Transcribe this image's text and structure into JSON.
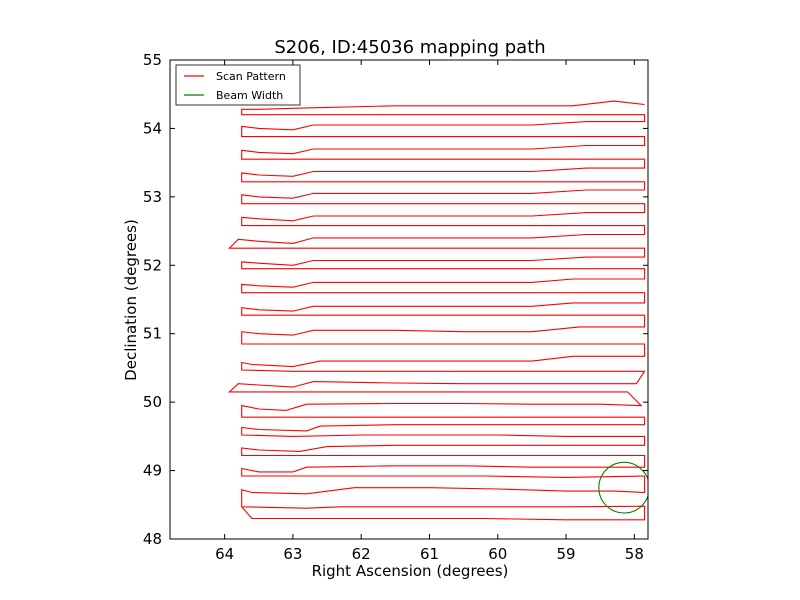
{
  "chart_data": {
    "type": "line",
    "title": "S206, ID:45036 mapping path",
    "xlabel": "Right Ascension (degrees)",
    "ylabel": "Declination (degrees)",
    "xlim": [
      64.8,
      57.8
    ],
    "ylim": [
      48,
      55
    ],
    "x_ticks": [
      "64",
      "63",
      "62",
      "61",
      "60",
      "59",
      "58"
    ],
    "x_tick_values": [
      64,
      63,
      62,
      61,
      60,
      59,
      58
    ],
    "y_ticks": [
      "48",
      "49",
      "50",
      "51",
      "52",
      "53",
      "54",
      "55"
    ],
    "y_tick_values": [
      48,
      49,
      50,
      51,
      52,
      53,
      54,
      55
    ],
    "grid": false,
    "legend_position": "top-left",
    "legend": [
      {
        "label": "Scan Pattern",
        "color": "#ff0000"
      },
      {
        "label": "Beam Width",
        "color": "#008000"
      }
    ],
    "series": [
      {
        "name": "Scan Pattern",
        "color": "#ff0000",
        "path": [
          [
            63.75,
            48.47
          ],
          [
            63.6,
            48.3
          ],
          [
            62.8,
            48.3
          ],
          [
            62.1,
            48.3
          ],
          [
            61.3,
            48.3
          ],
          [
            60.2,
            48.3
          ],
          [
            59.0,
            48.28
          ],
          [
            58.3,
            48.28
          ],
          [
            57.85,
            48.28
          ],
          [
            57.85,
            48.48
          ],
          [
            59.0,
            48.47
          ],
          [
            60.2,
            48.47
          ],
          [
            61.5,
            48.47
          ],
          [
            62.3,
            48.47
          ],
          [
            62.8,
            48.45
          ],
          [
            63.75,
            48.47
          ],
          [
            63.75,
            48.72
          ],
          [
            63.6,
            48.68
          ],
          [
            62.8,
            48.66
          ],
          [
            62.1,
            48.75
          ],
          [
            61.0,
            48.75
          ],
          [
            60.0,
            48.73
          ],
          [
            59.0,
            48.7
          ],
          [
            58.3,
            48.7
          ],
          [
            57.85,
            48.68
          ],
          [
            57.85,
            48.92
          ],
          [
            59.0,
            48.9
          ],
          [
            60.2,
            48.92
          ],
          [
            61.5,
            48.92
          ],
          [
            62.5,
            48.92
          ],
          [
            63.0,
            48.92
          ],
          [
            63.75,
            48.92
          ],
          [
            63.75,
            49.03
          ],
          [
            63.5,
            48.98
          ],
          [
            63.0,
            48.98
          ],
          [
            62.8,
            49.05
          ],
          [
            61.5,
            49.07
          ],
          [
            60.5,
            49.07
          ],
          [
            59.5,
            49.05
          ],
          [
            58.5,
            49.05
          ],
          [
            57.85,
            49.05
          ],
          [
            57.85,
            49.22
          ],
          [
            59.0,
            49.22
          ],
          [
            60.0,
            49.22
          ],
          [
            61.0,
            49.22
          ],
          [
            62.0,
            49.22
          ],
          [
            63.0,
            49.22
          ],
          [
            63.75,
            49.22
          ],
          [
            63.75,
            49.33
          ],
          [
            63.5,
            49.3
          ],
          [
            62.9,
            49.28
          ],
          [
            62.5,
            49.35
          ],
          [
            61.5,
            49.37
          ],
          [
            60.5,
            49.37
          ],
          [
            59.5,
            49.37
          ],
          [
            58.9,
            49.37
          ],
          [
            57.85,
            49.37
          ],
          [
            57.85,
            49.5
          ],
          [
            59.0,
            49.5
          ],
          [
            60.0,
            49.52
          ],
          [
            61.0,
            49.52
          ],
          [
            62.0,
            49.52
          ],
          [
            63.0,
            49.5
          ],
          [
            63.75,
            49.52
          ],
          [
            63.75,
            49.63
          ],
          [
            63.5,
            49.6
          ],
          [
            62.8,
            49.58
          ],
          [
            62.6,
            49.65
          ],
          [
            61.5,
            49.67
          ],
          [
            60.5,
            49.67
          ],
          [
            59.5,
            49.67
          ],
          [
            58.5,
            49.67
          ],
          [
            57.85,
            49.67
          ],
          [
            57.85,
            49.78
          ],
          [
            59.0,
            49.78
          ],
          [
            60.0,
            49.78
          ],
          [
            61.0,
            49.78
          ],
          [
            62.0,
            49.78
          ],
          [
            63.0,
            49.78
          ],
          [
            63.75,
            49.78
          ],
          [
            63.75,
            49.95
          ],
          [
            63.5,
            49.9
          ],
          [
            63.1,
            49.88
          ],
          [
            62.8,
            49.97
          ],
          [
            61.5,
            49.98
          ],
          [
            60.5,
            49.98
          ],
          [
            59.5,
            49.97
          ],
          [
            58.5,
            49.97
          ],
          [
            57.9,
            49.95
          ],
          [
            58.1,
            50.15
          ],
          [
            59.0,
            50.15
          ],
          [
            60.0,
            50.15
          ],
          [
            61.0,
            50.15
          ],
          [
            62.0,
            50.15
          ],
          [
            63.0,
            50.15
          ],
          [
            63.93,
            50.15
          ],
          [
            63.8,
            50.27
          ],
          [
            63.5,
            50.25
          ],
          [
            63.0,
            50.22
          ],
          [
            62.7,
            50.3
          ],
          [
            61.5,
            50.28
          ],
          [
            60.5,
            50.27
          ],
          [
            59.5,
            50.27
          ],
          [
            58.5,
            50.27
          ],
          [
            57.97,
            50.27
          ],
          [
            57.85,
            50.45
          ],
          [
            59.0,
            50.45
          ],
          [
            60.0,
            50.45
          ],
          [
            61.0,
            50.45
          ],
          [
            62.0,
            50.45
          ],
          [
            63.0,
            50.45
          ],
          [
            63.75,
            50.47
          ],
          [
            63.75,
            50.58
          ],
          [
            63.6,
            50.55
          ],
          [
            63.0,
            50.52
          ],
          [
            62.6,
            50.6
          ],
          [
            61.5,
            50.6
          ],
          [
            60.5,
            50.6
          ],
          [
            59.5,
            50.6
          ],
          [
            58.9,
            50.67
          ],
          [
            57.85,
            50.67
          ],
          [
            57.85,
            50.85
          ],
          [
            59.0,
            50.85
          ],
          [
            60.0,
            50.85
          ],
          [
            61.0,
            50.85
          ],
          [
            62.0,
            50.85
          ],
          [
            63.0,
            50.85
          ],
          [
            63.75,
            50.85
          ],
          [
            63.75,
            51.03
          ],
          [
            63.5,
            51.0
          ],
          [
            63.0,
            50.98
          ],
          [
            62.7,
            51.05
          ],
          [
            61.5,
            51.05
          ],
          [
            60.5,
            51.03
          ],
          [
            59.5,
            51.03
          ],
          [
            58.8,
            51.1
          ],
          [
            57.85,
            51.1
          ],
          [
            57.85,
            51.27
          ],
          [
            59.0,
            51.27
          ],
          [
            60.0,
            51.27
          ],
          [
            61.0,
            51.27
          ],
          [
            62.0,
            51.27
          ],
          [
            63.0,
            51.27
          ],
          [
            63.75,
            51.27
          ],
          [
            63.75,
            51.38
          ],
          [
            63.5,
            51.35
          ],
          [
            63.0,
            51.33
          ],
          [
            62.7,
            51.4
          ],
          [
            61.5,
            51.4
          ],
          [
            60.5,
            51.4
          ],
          [
            59.5,
            51.4
          ],
          [
            58.9,
            51.45
          ],
          [
            57.85,
            51.45
          ],
          [
            57.85,
            51.6
          ],
          [
            59.0,
            51.6
          ],
          [
            60.0,
            51.6
          ],
          [
            61.0,
            51.6
          ],
          [
            62.0,
            51.6
          ],
          [
            63.0,
            51.6
          ],
          [
            63.75,
            51.6
          ],
          [
            63.75,
            51.72
          ],
          [
            63.5,
            51.7
          ],
          [
            63.0,
            51.68
          ],
          [
            62.7,
            51.75
          ],
          [
            61.5,
            51.75
          ],
          [
            60.5,
            51.75
          ],
          [
            59.5,
            51.75
          ],
          [
            58.9,
            51.8
          ],
          [
            57.85,
            51.8
          ],
          [
            57.85,
            51.95
          ],
          [
            59.0,
            51.95
          ],
          [
            60.0,
            51.95
          ],
          [
            61.0,
            51.95
          ],
          [
            62.0,
            51.95
          ],
          [
            63.0,
            51.95
          ],
          [
            63.75,
            51.95
          ],
          [
            63.75,
            52.05
          ],
          [
            63.5,
            52.03
          ],
          [
            63.0,
            52.0
          ],
          [
            62.7,
            52.07
          ],
          [
            61.5,
            52.07
          ],
          [
            60.5,
            52.07
          ],
          [
            59.5,
            52.07
          ],
          [
            58.7,
            52.12
          ],
          [
            57.85,
            52.12
          ],
          [
            57.85,
            52.25
          ],
          [
            59.0,
            52.25
          ],
          [
            60.0,
            52.25
          ],
          [
            61.0,
            52.25
          ],
          [
            62.0,
            52.25
          ],
          [
            63.0,
            52.25
          ],
          [
            63.93,
            52.25
          ],
          [
            63.8,
            52.38
          ],
          [
            63.5,
            52.35
          ],
          [
            63.0,
            52.32
          ],
          [
            62.7,
            52.4
          ],
          [
            61.5,
            52.4
          ],
          [
            60.5,
            52.4
          ],
          [
            59.5,
            52.4
          ],
          [
            58.7,
            52.45
          ],
          [
            57.85,
            52.45
          ],
          [
            57.85,
            52.58
          ],
          [
            59.0,
            52.58
          ],
          [
            60.0,
            52.58
          ],
          [
            61.0,
            52.58
          ],
          [
            62.0,
            52.58
          ],
          [
            63.0,
            52.58
          ],
          [
            63.75,
            52.58
          ],
          [
            63.75,
            52.7
          ],
          [
            63.5,
            52.68
          ],
          [
            63.0,
            52.65
          ],
          [
            62.7,
            52.72
          ],
          [
            61.5,
            52.72
          ],
          [
            60.5,
            52.72
          ],
          [
            59.5,
            52.72
          ],
          [
            58.7,
            52.77
          ],
          [
            57.85,
            52.77
          ],
          [
            57.85,
            52.9
          ],
          [
            59.0,
            52.9
          ],
          [
            60.0,
            52.9
          ],
          [
            61.0,
            52.9
          ],
          [
            62.0,
            52.9
          ],
          [
            63.0,
            52.9
          ],
          [
            63.75,
            52.9
          ],
          [
            63.75,
            53.03
          ],
          [
            63.5,
            53.0
          ],
          [
            63.0,
            52.98
          ],
          [
            62.7,
            53.05
          ],
          [
            61.5,
            53.05
          ],
          [
            60.5,
            53.05
          ],
          [
            59.5,
            53.05
          ],
          [
            58.7,
            53.1
          ],
          [
            57.85,
            53.1
          ],
          [
            57.85,
            53.22
          ],
          [
            59.0,
            53.22
          ],
          [
            60.0,
            53.22
          ],
          [
            61.0,
            53.22
          ],
          [
            62.0,
            53.22
          ],
          [
            63.0,
            53.22
          ],
          [
            63.75,
            53.22
          ],
          [
            63.75,
            53.35
          ],
          [
            63.5,
            53.32
          ],
          [
            63.0,
            53.3
          ],
          [
            62.7,
            53.37
          ],
          [
            61.5,
            53.37
          ],
          [
            60.5,
            53.37
          ],
          [
            59.5,
            53.37
          ],
          [
            58.7,
            53.42
          ],
          [
            57.85,
            53.42
          ],
          [
            57.85,
            53.55
          ],
          [
            59.0,
            53.55
          ],
          [
            60.0,
            53.55
          ],
          [
            61.0,
            53.55
          ],
          [
            62.0,
            53.55
          ],
          [
            63.0,
            53.55
          ],
          [
            63.75,
            53.55
          ],
          [
            63.75,
            53.68
          ],
          [
            63.5,
            53.65
          ],
          [
            63.0,
            53.63
          ],
          [
            62.7,
            53.7
          ],
          [
            61.5,
            53.7
          ],
          [
            60.5,
            53.7
          ],
          [
            59.5,
            53.7
          ],
          [
            58.7,
            53.75
          ],
          [
            57.85,
            53.75
          ],
          [
            57.85,
            53.88
          ],
          [
            59.0,
            53.88
          ],
          [
            60.0,
            53.88
          ],
          [
            61.0,
            53.88
          ],
          [
            62.0,
            53.88
          ],
          [
            63.0,
            53.88
          ],
          [
            63.75,
            53.88
          ],
          [
            63.75,
            54.03
          ],
          [
            63.5,
            54.0
          ],
          [
            63.0,
            53.98
          ],
          [
            62.7,
            54.05
          ],
          [
            61.5,
            54.05
          ],
          [
            60.5,
            54.05
          ],
          [
            59.5,
            54.05
          ],
          [
            58.7,
            54.1
          ],
          [
            57.85,
            54.1
          ],
          [
            57.85,
            54.2
          ],
          [
            59.0,
            54.2
          ],
          [
            60.0,
            54.2
          ],
          [
            61.0,
            54.2
          ],
          [
            62.0,
            54.2
          ],
          [
            63.0,
            54.2
          ],
          [
            63.75,
            54.2
          ],
          [
            63.75,
            54.28
          ],
          [
            63.5,
            54.28
          ],
          [
            62.8,
            54.3
          ],
          [
            61.5,
            54.33
          ],
          [
            60.0,
            54.33
          ],
          [
            58.9,
            54.33
          ],
          [
            58.3,
            54.4
          ],
          [
            57.85,
            54.35
          ],
          [
            57.85,
            54.35
          ]
        ]
      }
    ],
    "beam": {
      "name": "Beam Width",
      "color": "#008000",
      "center": [
        58.15,
        48.75
      ],
      "radius": 0.37
    }
  }
}
